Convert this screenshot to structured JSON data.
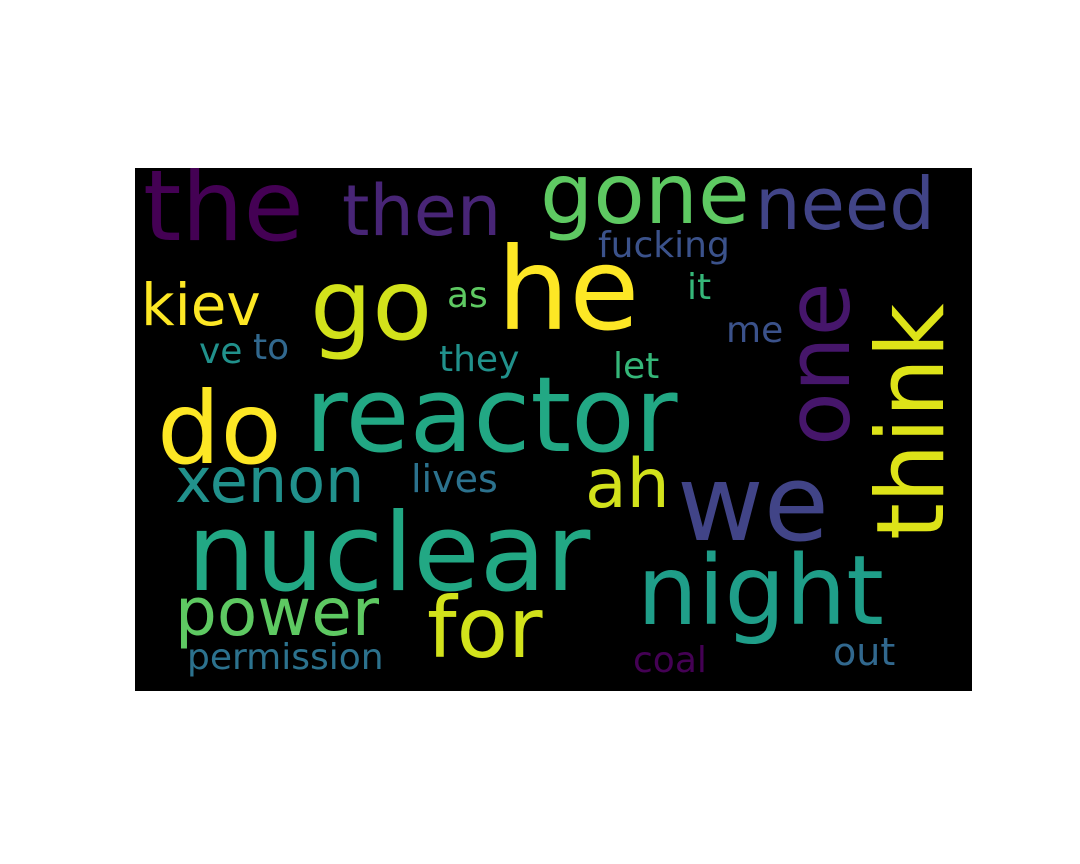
{
  "word_cloud": {
    "words": [
      {
        "id": "the",
        "text": "the",
        "color": "#440154"
      },
      {
        "id": "then",
        "text": "then",
        "color": "#482576"
      },
      {
        "id": "gone",
        "text": "gone",
        "color": "#5ec962"
      },
      {
        "id": "need",
        "text": "need",
        "color": "#414487"
      },
      {
        "id": "fucking",
        "text": "fucking",
        "color": "#3b528b"
      },
      {
        "id": "kiev",
        "text": "kiev",
        "color": "#fde725"
      },
      {
        "id": "go",
        "text": "go",
        "color": "#d2e21b"
      },
      {
        "id": "as",
        "text": "as",
        "color": "#5ec962"
      },
      {
        "id": "he",
        "text": "he",
        "color": "#fde725"
      },
      {
        "id": "it",
        "text": "it",
        "color": "#35b779"
      },
      {
        "id": "one",
        "text": "one",
        "color": "#46166b"
      },
      {
        "id": "think",
        "text": "think",
        "color": "#dde318"
      },
      {
        "id": "me",
        "text": "me",
        "color": "#3b528b"
      },
      {
        "id": "ve",
        "text": "ve",
        "color": "#21918c"
      },
      {
        "id": "to",
        "text": "to",
        "color": "#31688e"
      },
      {
        "id": "they",
        "text": "they",
        "color": "#21918c"
      },
      {
        "id": "let",
        "text": "let",
        "color": "#35b779"
      },
      {
        "id": "do",
        "text": "do",
        "color": "#fde725"
      },
      {
        "id": "reactor",
        "text": "reactor",
        "color": "#22a884"
      },
      {
        "id": "xenon",
        "text": "xenon",
        "color": "#21918c"
      },
      {
        "id": "lives",
        "text": "lives",
        "color": "#2c728e"
      },
      {
        "id": "ah",
        "text": "ah",
        "color": "#d2e21b"
      },
      {
        "id": "we",
        "text": "we",
        "color": "#414487"
      },
      {
        "id": "nuclear",
        "text": "nuclear",
        "color": "#22a884"
      },
      {
        "id": "night",
        "text": "night",
        "color": "#1f9e89"
      },
      {
        "id": "power",
        "text": "power",
        "color": "#5ec962"
      },
      {
        "id": "for",
        "text": "for",
        "color": "#d2e21b"
      },
      {
        "id": "permission",
        "text": "permission",
        "color": "#2c728e"
      },
      {
        "id": "coal",
        "text": "coal",
        "color": "#440154"
      },
      {
        "id": "out",
        "text": "out",
        "color": "#31688e"
      }
    ]
  }
}
